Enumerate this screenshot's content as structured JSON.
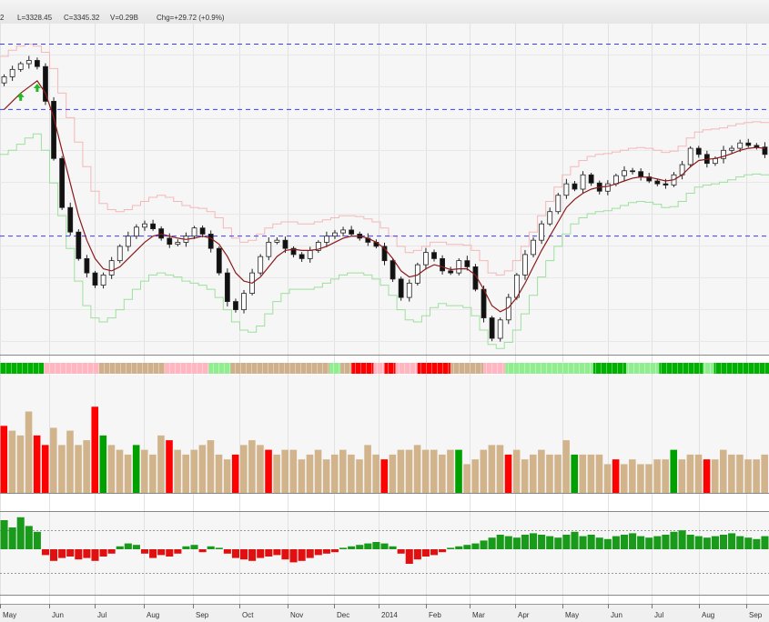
{
  "ohlc_bar": {
    "partial": "2",
    "low": "L=3328.45",
    "close": "C=3345.32",
    "volume": "V=0.29B",
    "change": "Chg=+29.72 (+0.9%)"
  },
  "chart_data": {
    "type": "candlestick",
    "x_tick_labels": [
      "May",
      "Jun",
      "Jul",
      "Aug",
      "Sep",
      "Oct",
      "Nov",
      "Dec",
      "2014",
      "Feb",
      "Mar",
      "Apr",
      "May",
      "Jun",
      "Jul",
      "Aug",
      "Sep"
    ],
    "price_series": [
      3380,
      3398,
      3412,
      3420,
      3405,
      3320,
      3180,
      3060,
      3000,
      2935,
      2900,
      2870,
      2895,
      2930,
      2965,
      2990,
      3012,
      3020,
      3008,
      2985,
      2970,
      2975,
      2990,
      3010,
      2995,
      2960,
      2900,
      2830,
      2810,
      2850,
      2900,
      2940,
      2975,
      2980,
      2960,
      2945,
      2935,
      2955,
      2975,
      2990,
      2998,
      3005,
      2995,
      2985,
      2975,
      2965,
      2930,
      2885,
      2840,
      2875,
      2920,
      2950,
      2935,
      2905,
      2900,
      2930,
      2915,
      2860,
      2790,
      2740,
      2785,
      2840,
      2895,
      2945,
      2980,
      3020,
      3050,
      3090,
      3118,
      3105,
      3140,
      3120,
      3100,
      3118,
      3138,
      3150,
      3148,
      3135,
      3125,
      3118,
      3115,
      3140,
      3165,
      3205,
      3190,
      3168,
      3180,
      3200,
      3205,
      3218,
      3212,
      3208,
      3190
    ],
    "ma_series": [
      3300,
      3320,
      3340,
      3355,
      3370,
      3340,
      3280,
      3200,
      3120,
      3040,
      2980,
      2935,
      2910,
      2905,
      2915,
      2935,
      2955,
      2975,
      2990,
      2995,
      2990,
      2985,
      2982,
      2985,
      2990,
      2985,
      2970,
      2940,
      2900,
      2880,
      2875,
      2890,
      2915,
      2940,
      2955,
      2958,
      2955,
      2955,
      2958,
      2965,
      2975,
      2985,
      2990,
      2990,
      2985,
      2975,
      2960,
      2935,
      2905,
      2890,
      2895,
      2910,
      2920,
      2915,
      2908,
      2910,
      2910,
      2895,
      2860,
      2820,
      2805,
      2815,
      2840,
      2875,
      2915,
      2955,
      2990,
      3025,
      3060,
      3080,
      3095,
      3105,
      3110,
      3112,
      3118,
      3125,
      3132,
      3135,
      3134,
      3130,
      3125,
      3128,
      3140,
      3160,
      3175,
      3178,
      3180,
      3185,
      3192,
      3200,
      3205,
      3207,
      3205
    ],
    "upper_band": [
      3430,
      3445,
      3455,
      3460,
      3455,
      3440,
      3400,
      3340,
      3280,
      3220,
      3160,
      3100,
      3070,
      3055,
      3050,
      3055,
      3065,
      3075,
      3085,
      3090,
      3085,
      3075,
      3065,
      3060,
      3058,
      3050,
      3035,
      3010,
      2985,
      2975,
      2980,
      2995,
      3010,
      3020,
      3025,
      3025,
      3020,
      3020,
      3025,
      3030,
      3035,
      3040,
      3040,
      3038,
      3032,
      3025,
      3010,
      2990,
      2965,
      2950,
      2955,
      2965,
      2975,
      2975,
      2970,
      2970,
      2968,
      2955,
      2930,
      2900,
      2895,
      2905,
      2930,
      2965,
      3000,
      3040,
      3075,
      3110,
      3140,
      3160,
      3175,
      3185,
      3190,
      3192,
      3196,
      3200,
      3205,
      3207,
      3205,
      3200,
      3195,
      3198,
      3210,
      3230,
      3245,
      3250,
      3252,
      3255,
      3260,
      3265,
      3268,
      3270,
      3268
    ],
    "lower_band": [
      3190,
      3200,
      3215,
      3230,
      3240,
      3200,
      3120,
      3040,
      2960,
      2880,
      2820,
      2790,
      2780,
      2790,
      2810,
      2835,
      2860,
      2880,
      2895,
      2900,
      2895,
      2890,
      2880,
      2875,
      2870,
      2860,
      2840,
      2810,
      2780,
      2760,
      2755,
      2770,
      2800,
      2830,
      2850,
      2860,
      2860,
      2860,
      2865,
      2875,
      2885,
      2895,
      2900,
      2900,
      2895,
      2885,
      2870,
      2845,
      2810,
      2785,
      2780,
      2795,
      2815,
      2825,
      2820,
      2820,
      2815,
      2795,
      2760,
      2725,
      2715,
      2730,
      2760,
      2800,
      2845,
      2890,
      2930,
      2965,
      2995,
      3020,
      3035,
      3045,
      3050,
      3052,
      3058,
      3065,
      3072,
      3075,
      3073,
      3068,
      3060,
      3062,
      3075,
      3095,
      3110,
      3115,
      3118,
      3122,
      3128,
      3135,
      3140,
      3142,
      3140
    ],
    "reference_levels": [
      3460,
      3300,
      2990
    ],
    "buy_arrows": [
      {
        "index": 2,
        "value": 3330
      },
      {
        "index": 4,
        "value": 3352
      }
    ],
    "y_range": [
      2700,
      3510
    ],
    "trend_bar": [
      {
        "color": "#00b000",
        "units": 4
      },
      {
        "color": "#ffb6c1",
        "units": 5
      },
      {
        "color": "#cfb08c",
        "units": 6
      },
      {
        "color": "#ffb6c1",
        "units": 4
      },
      {
        "color": "#90ee90",
        "units": 2
      },
      {
        "color": "#cfb08c",
        "units": 9
      },
      {
        "color": "#90ee90",
        "units": 1
      },
      {
        "color": "#cfb08c",
        "units": 1
      },
      {
        "color": "#ff0000",
        "units": 2
      },
      {
        "color": "#ffb6c1",
        "units": 1
      },
      {
        "color": "#ff0000",
        "units": 1
      },
      {
        "color": "#ffb6c1",
        "units": 2
      },
      {
        "color": "#ff0000",
        "units": 3
      },
      {
        "color": "#cfb08c",
        "units": 3
      },
      {
        "color": "#ffb6c1",
        "units": 2
      },
      {
        "color": "#90ee90",
        "units": 8
      },
      {
        "color": "#00b000",
        "units": 3
      },
      {
        "color": "#90ee90",
        "units": 3
      },
      {
        "color": "#00b000",
        "units": 4
      },
      {
        "color": "#90ee90",
        "units": 1
      },
      {
        "color": "#00b000",
        "units": 5
      }
    ],
    "volume": [
      7,
      6.5,
      6,
      8.5,
      6,
      5,
      6.8,
      5,
      6.5,
      5,
      5.5,
      9,
      6,
      5,
      4.5,
      4,
      5,
      4.5,
      4,
      6,
      5.5,
      4.5,
      4,
      4.5,
      5,
      5.5,
      4,
      3.5,
      4,
      5,
      5.5,
      5,
      4.5,
      4,
      4.5,
      4.5,
      3.5,
      4,
      4.5,
      3.5,
      4,
      4.5,
      4,
      3.5,
      5,
      4,
      3.5,
      4,
      4.5,
      4.5,
      5,
      4.5,
      4.5,
      4,
      4.5,
      4.5,
      3,
      3.5,
      4.5,
      5,
      5,
      4,
      4.5,
      3.5,
      4,
      4.5,
      4,
      4,
      5.5,
      4,
      4,
      4,
      4,
      3,
      3.5,
      3,
      3.5,
      3,
      3,
      3.5,
      3.5,
      4.5,
      3.5,
      4,
      4,
      3.5,
      3.5,
      4.5,
      4,
      4,
      3.5,
      3.5,
      4
    ],
    "volume_highlight": {
      "0": "#ff0000",
      "4": "#ff0000",
      "5": "#ff0000",
      "11": "#ff0000",
      "12": "#00a000",
      "16": "#00a000",
      "20": "#ff0000",
      "28": "#ff0000",
      "32": "#ff0000",
      "46": "#ff0000",
      "55": "#00a000",
      "61": "#ff0000",
      "69": "#00a000",
      "74": "#ff0000",
      "81": "#00a000",
      "85": "#ff0000"
    },
    "volume_max": 9.5,
    "oscillator": [
      2.0,
      1.5,
      2.2,
      1.6,
      1.2,
      -0.4,
      -0.8,
      -0.6,
      -0.5,
      -0.7,
      -0.6,
      -0.8,
      -0.5,
      -0.3,
      0.2,
      0.4,
      0.3,
      -0.3,
      -0.6,
      -0.4,
      -0.5,
      -0.3,
      0.2,
      0.3,
      -0.2,
      0.2,
      0.1,
      -0.3,
      -0.6,
      -0.7,
      -0.8,
      -0.6,
      -0.5,
      -0.4,
      -0.7,
      -0.9,
      -0.8,
      -0.6,
      -0.4,
      -0.3,
      -0.2,
      0.1,
      0.2,
      0.3,
      0.4,
      0.5,
      0.4,
      0.2,
      -0.3,
      -1.0,
      -0.7,
      -0.5,
      -0.4,
      -0.2,
      0.1,
      0.2,
      0.3,
      0.4,
      0.6,
      0.8,
      1.0,
      0.9,
      0.8,
      1.0,
      1.1,
      1.0,
      0.9,
      0.8,
      1.0,
      1.2,
      0.9,
      1.0,
      0.8,
      0.7,
      0.9,
      1.0,
      1.1,
      0.9,
      0.8,
      0.9,
      1.0,
      1.2,
      1.3,
      1.0,
      0.9,
      0.8,
      0.9,
      1.0,
      1.1,
      0.9,
      0.8,
      0.7,
      0.9
    ]
  }
}
